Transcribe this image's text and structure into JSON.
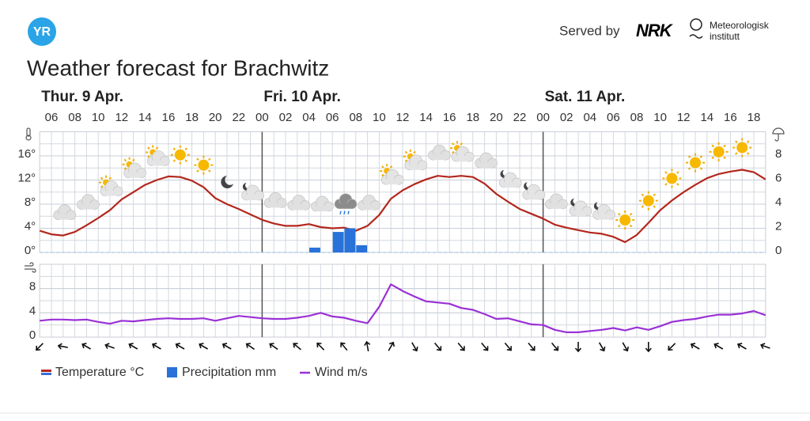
{
  "header": {
    "logo": "YR",
    "served_by": "Served by",
    "provider": "NRK",
    "institute": [
      "Meteorologisk",
      "institutt"
    ]
  },
  "title": "Weather forecast for Brachwitz",
  "chart_data": [
    {
      "type": "line",
      "days": [
        "Thur. 9 Apr.",
        "Fri. 10 Apr.",
        "Sat. 11 Apr."
      ],
      "categories": [
        null,
        "06",
        null,
        "08",
        null,
        "10",
        null,
        "12",
        null,
        "14",
        null,
        "16",
        null,
        "18",
        null,
        "20",
        null,
        "22",
        null,
        "00",
        null,
        "02",
        null,
        "04",
        null,
        "06",
        null,
        "08",
        null,
        "10",
        null,
        "12",
        null,
        "14",
        null,
        "16",
        null,
        "18",
        null,
        "20",
        null,
        "22",
        null,
        "00",
        null,
        "02",
        null,
        "04",
        null,
        "06",
        null,
        "08",
        null,
        "10",
        null,
        "12",
        null,
        "14",
        null,
        "16",
        null,
        "18",
        null
      ],
      "ylim": [
        0,
        20
      ],
      "yticks": [
        {
          "value": 0,
          "label": "0°"
        },
        {
          "value": 4,
          "label": "4°"
        },
        {
          "value": 8,
          "label": "8°"
        },
        {
          "value": 12,
          "label": "12°"
        },
        {
          "value": 16,
          "label": "16°"
        }
      ],
      "y2lim": [
        0,
        10
      ],
      "y2ticks": [
        0,
        2,
        4,
        6,
        8
      ],
      "grid": true,
      "series": [
        {
          "name": "Temperature °C",
          "color": "#b3271d",
          "values": [
            3.6,
            3.0,
            2.8,
            3.4,
            4.5,
            5.7,
            7.0,
            8.8,
            10.0,
            11.2,
            12.0,
            12.6,
            12.5,
            11.9,
            10.8,
            9.0,
            8.0,
            7.2,
            6.3,
            5.4,
            4.8,
            4.4,
            4.4,
            4.7,
            4.2,
            4.0,
            4.1,
            3.6,
            4.4,
            6.2,
            8.9,
            10.3,
            11.3,
            12.1,
            12.7,
            12.5,
            12.7,
            12.5,
            11.4,
            9.7,
            8.4,
            7.2,
            6.4,
            5.6,
            4.6,
            4.1,
            3.7,
            3.3,
            3.1,
            2.6,
            1.7,
            2.9,
            4.9,
            7.0,
            8.6,
            10.0,
            11.2,
            12.3,
            13.0,
            13.4,
            13.7,
            13.3,
            12.1
          ]
        },
        {
          "name": "Precipitation mm",
          "type": "bar",
          "axis": "y2",
          "color": "#2872d9",
          "values": [
            null,
            null,
            null,
            null,
            null,
            null,
            null,
            null,
            null,
            null,
            null,
            null,
            null,
            null,
            null,
            null,
            null,
            null,
            null,
            null,
            null,
            null,
            null,
            0.4,
            null,
            1.7,
            2.0,
            0.6,
            null,
            null,
            null,
            null,
            null,
            null,
            null,
            null,
            null,
            null,
            null,
            null,
            null,
            null,
            null,
            null,
            null,
            null,
            null,
            null,
            null,
            null,
            null,
            null,
            null,
            null,
            null,
            null,
            null,
            null,
            null,
            null,
            null,
            null,
            null
          ]
        }
      ]
    },
    {
      "type": "line",
      "ylim": [
        0,
        12
      ],
      "yticks": [
        0,
        4,
        8
      ],
      "grid": true,
      "series": [
        {
          "name": "Wind m/s",
          "color": "#9a31d6",
          "values": [
            2.7,
            2.9,
            2.9,
            2.8,
            2.9,
            2.5,
            2.2,
            2.7,
            2.6,
            2.8,
            3.0,
            3.1,
            3.0,
            3.0,
            3.1,
            2.7,
            3.1,
            3.5,
            3.3,
            3.1,
            3.0,
            3.0,
            3.2,
            3.5,
            4.0,
            3.4,
            3.2,
            2.7,
            2.3,
            5.0,
            8.7,
            7.6,
            6.7,
            5.9,
            5.7,
            5.5,
            4.8,
            4.5,
            3.8,
            3.0,
            3.1,
            2.6,
            2.1,
            2.0,
            1.2,
            0.8,
            0.8,
            1.0,
            1.2,
            1.5,
            1.1,
            1.6,
            1.2,
            1.8,
            2.5,
            2.8,
            3.0,
            3.4,
            3.7,
            3.7,
            3.9,
            4.3,
            3.6
          ]
        }
      ]
    }
  ]
}
